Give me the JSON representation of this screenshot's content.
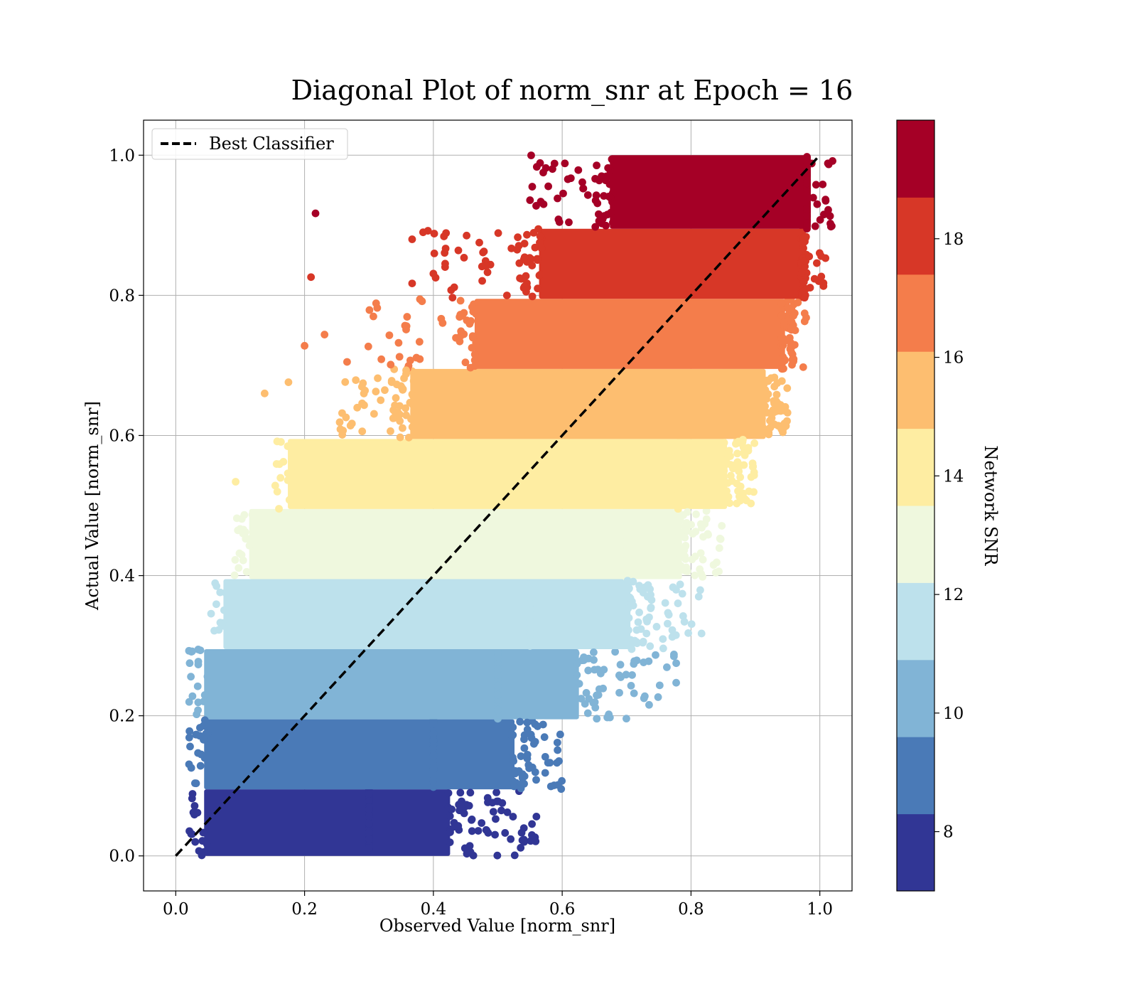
{
  "chart_data": {
    "type": "scatter",
    "title": "Diagonal Plot of norm_snr at Epoch = 16",
    "xlabel": "Observed Value [norm_snr]",
    "ylabel": "Actual Value [norm_snr]",
    "xlim": [
      -0.05,
      1.05
    ],
    "ylim": [
      -0.05,
      1.05
    ],
    "x_ticks": [
      "0.0",
      "0.2",
      "0.4",
      "0.6",
      "0.8",
      "1.0"
    ],
    "y_ticks": [
      "0.0",
      "0.2",
      "0.4",
      "0.6",
      "0.8",
      "1.0"
    ],
    "grid": true,
    "legend": {
      "placement": "upper-left",
      "entries": [
        {
          "label": "Best Classifier",
          "style": "dashed",
          "color": "#000000"
        }
      ]
    },
    "reference_line": {
      "label": "Best Classifier",
      "x": [
        0,
        1
      ],
      "y": [
        0,
        1
      ]
    },
    "colorbar": {
      "label": "Network SNR",
      "range": [
        7,
        20
      ],
      "ticks": [
        "8",
        "10",
        "12",
        "14",
        "16",
        "18"
      ],
      "bins": [
        {
          "from": 7,
          "to": 8.3,
          "color": "#313695"
        },
        {
          "from": 8.3,
          "to": 9.6,
          "color": "#4a7ab7"
        },
        {
          "from": 9.6,
          "to": 10.9,
          "color": "#81b4d6"
        },
        {
          "from": 10.9,
          "to": 12.2,
          "color": "#bde1ec"
        },
        {
          "from": 12.2,
          "to": 13.5,
          "color": "#eff8de"
        },
        {
          "from": 13.5,
          "to": 14.8,
          "color": "#feeda2"
        },
        {
          "from": 14.8,
          "to": 16.1,
          "color": "#fdbe70"
        },
        {
          "from": 16.1,
          "to": 17.4,
          "color": "#f47d4b"
        },
        {
          "from": 17.4,
          "to": 18.7,
          "color": "#d73727"
        },
        {
          "from": 18.7,
          "to": 20,
          "color": "#a50026"
        }
      ]
    },
    "series": [
      {
        "band": 0,
        "y_range": [
          0.0,
          0.095
        ],
        "x_range": [
          0.05,
          0.42
        ],
        "sparse_tail_x": [
          0.3,
          0.57
        ]
      },
      {
        "band": 1,
        "y_range": [
          0.095,
          0.195
        ],
        "x_range": [
          0.05,
          0.52
        ],
        "sparse_tail_x": [
          0.4,
          0.6
        ]
      },
      {
        "band": 2,
        "y_range": [
          0.195,
          0.295
        ],
        "x_range": [
          0.05,
          0.62
        ],
        "sparse_tail_x": [
          0.5,
          0.78
        ]
      },
      {
        "band": 3,
        "y_range": [
          0.295,
          0.395
        ],
        "x_range": [
          0.08,
          0.7
        ],
        "sparse_tail_x": [
          0.55,
          0.82
        ]
      },
      {
        "band": 4,
        "y_range": [
          0.395,
          0.495
        ],
        "x_range": [
          0.12,
          0.78
        ],
        "sparse_tail_x": [
          0.7,
          0.85
        ]
      },
      {
        "band": 5,
        "y_range": [
          0.495,
          0.595
        ],
        "x_range": [
          0.18,
          0.85
        ],
        "sparse_tail_x": [
          0.78,
          0.9
        ]
      },
      {
        "band": 6,
        "y_range": [
          0.595,
          0.695
        ],
        "x_range": [
          0.37,
          0.91
        ],
        "sparse_tail_x": [
          0.25,
          0.95
        ]
      },
      {
        "band": 7,
        "y_range": [
          0.695,
          0.795
        ],
        "x_range": [
          0.47,
          0.94
        ],
        "sparse_tail_x": [
          0.3,
          0.96
        ]
      },
      {
        "band": 8,
        "y_range": [
          0.795,
          0.895
        ],
        "x_range": [
          0.57,
          0.97
        ],
        "sparse_tail_x": [
          0.36,
          0.98
        ]
      },
      {
        "band": 9,
        "y_range": [
          0.895,
          1.0
        ],
        "x_range": [
          0.68,
          0.98
        ],
        "sparse_tail_x": [
          0.55,
          0.98
        ]
      }
    ],
    "outliers": [
      {
        "x": 0.217,
        "y": 0.917,
        "band": 9
      },
      {
        "x": 0.21,
        "y": 0.826,
        "band": 8
      },
      {
        "x": 0.367,
        "y": 0.88,
        "band": 8
      },
      {
        "x": 0.384,
        "y": 0.89,
        "band": 8
      },
      {
        "x": 0.4,
        "y": 0.831,
        "band": 8
      },
      {
        "x": 0.367,
        "y": 0.817,
        "band": 8
      },
      {
        "x": 0.2,
        "y": 0.728,
        "band": 7
      },
      {
        "x": 0.231,
        "y": 0.744,
        "band": 7
      },
      {
        "x": 0.266,
        "y": 0.705,
        "band": 7
      },
      {
        "x": 0.299,
        "y": 0.727,
        "band": 7
      },
      {
        "x": 0.138,
        "y": 0.66,
        "band": 6
      },
      {
        "x": 0.175,
        "y": 0.676,
        "band": 6
      },
      {
        "x": 0.945,
        "y": 0.617,
        "band": 6
      },
      {
        "x": 0.093,
        "y": 0.534,
        "band": 5
      },
      {
        "x": 0.893,
        "y": 0.503,
        "band": 5
      },
      {
        "x": 0.812,
        "y": 0.37,
        "band": 3
      },
      {
        "x": 0.76,
        "y": 0.361,
        "band": 3
      },
      {
        "x": 0.777,
        "y": 0.275,
        "band": 2
      },
      {
        "x": 0.727,
        "y": 0.225,
        "band": 2
      },
      {
        "x": 0.712,
        "y": 0.278,
        "band": 2
      },
      {
        "x": 0.581,
        "y": 0.133,
        "band": 1
      },
      {
        "x": 0.541,
        "y": 0.02,
        "band": 0
      },
      {
        "x": 0.537,
        "y": 0.033,
        "band": 0
      },
      {
        "x": 0.482,
        "y": 0.037,
        "band": 0
      }
    ]
  }
}
